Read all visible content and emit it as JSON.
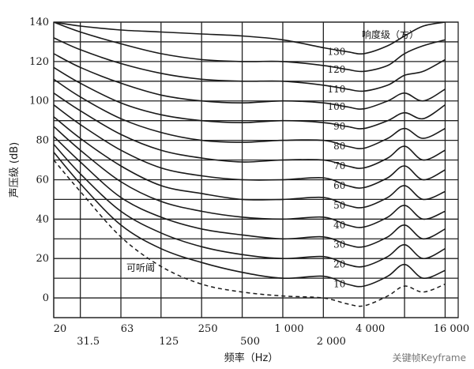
{
  "chart_data": {
    "type": "line",
    "title": "",
    "xlabel": "频率（Hz）",
    "ylabel": "声压级 (dB)",
    "x_scale": "log",
    "xlim": [
      20,
      20000
    ],
    "ylim": [
      -10,
      140
    ],
    "y_ticks": [
      0,
      20,
      40,
      60,
      80,
      100,
      120,
      140
    ],
    "x_ticks_upper": [
      {
        "value": 20,
        "label": "20"
      },
      {
        "value": 63,
        "label": "63"
      },
      {
        "value": 250,
        "label": "250"
      },
      {
        "value": 1000,
        "label": "1 000"
      },
      {
        "value": 4000,
        "label": "4 000"
      },
      {
        "value": 16000,
        "label": "16 000"
      }
    ],
    "x_ticks_lower": [
      {
        "value": 31.5,
        "label": "31.5"
      },
      {
        "value": 125,
        "label": "125"
      },
      {
        "value": 500,
        "label": "500"
      },
      {
        "value": 2000,
        "label": "2 000"
      }
    ],
    "legend_title": "响度级（方）",
    "threshold_label": "可听阈",
    "grid": true,
    "series": [
      {
        "name": "130",
        "x": [
          20,
          31.5,
          63,
          125,
          250,
          500,
          1000,
          2000,
          3000,
          4000,
          6000,
          8000,
          11000,
          16000
        ],
        "y": [
          140,
          138,
          136,
          135,
          134,
          133,
          131,
          127,
          125,
          124,
          128,
          133,
          138,
          140
        ]
      },
      {
        "name": "120",
        "x": [
          20,
          31.5,
          63,
          125,
          250,
          500,
          1000,
          2000,
          3000,
          4000,
          6000,
          8000,
          11000,
          16000
        ],
        "y": [
          140,
          135,
          129,
          124,
          121,
          120,
          120,
          118,
          116,
          115,
          118,
          124,
          128,
          131
        ]
      },
      {
        "name": "110",
        "x": [
          20,
          31.5,
          63,
          125,
          250,
          500,
          1000,
          2000,
          3000,
          4000,
          6000,
          8000,
          11000,
          16000
        ],
        "y": [
          132,
          126,
          119,
          114,
          111,
          110,
          110,
          108,
          106,
          105,
          108,
          113,
          115,
          121
        ]
      },
      {
        "name": "100",
        "x": [
          20,
          31.5,
          63,
          125,
          250,
          500,
          1000,
          2000,
          3000,
          4000,
          6000,
          8000,
          11000,
          16000
        ],
        "y": [
          124,
          117,
          109,
          103,
          100,
          99,
          100,
          99,
          97,
          96,
          100,
          104,
          100,
          106
        ]
      },
      {
        "name": "90",
        "x": [
          20,
          31.5,
          63,
          125,
          250,
          500,
          1000,
          2000,
          3000,
          4000,
          6000,
          8000,
          11000,
          16000
        ],
        "y": [
          117,
          109,
          99,
          93,
          90,
          89,
          90,
          89,
          87,
          86,
          90,
          94,
          91,
          98
        ]
      },
      {
        "name": "80",
        "x": [
          20,
          31.5,
          63,
          125,
          250,
          500,
          1000,
          2000,
          3000,
          4000,
          6000,
          8000,
          11000,
          16000
        ],
        "y": [
          111,
          102,
          91,
          84,
          80,
          79,
          80,
          80,
          77,
          76,
          81,
          86,
          81,
          86
        ]
      },
      {
        "name": "70",
        "x": [
          20,
          31.5,
          63,
          125,
          250,
          500,
          1000,
          2000,
          3000,
          4000,
          6000,
          8000,
          11000,
          16000
        ],
        "y": [
          104,
          95,
          83,
          75,
          71,
          69,
          70,
          70,
          67,
          66,
          71,
          77,
          70,
          75
        ]
      },
      {
        "name": "60",
        "x": [
          20,
          31.5,
          63,
          125,
          250,
          500,
          1000,
          2000,
          3000,
          4000,
          6000,
          8000,
          11000,
          16000
        ],
        "y": [
          98,
          88,
          75,
          66,
          62,
          60,
          60,
          61,
          57,
          56,
          61,
          67,
          60,
          65
        ]
      },
      {
        "name": "50",
        "x": [
          20,
          31.5,
          63,
          125,
          250,
          500,
          1000,
          2000,
          3000,
          4000,
          6000,
          8000,
          11000,
          16000
        ],
        "y": [
          92,
          81,
          67,
          57,
          53,
          50,
          50,
          51,
          47,
          46,
          51,
          57,
          50,
          54
        ]
      },
      {
        "name": "40",
        "x": [
          20,
          31.5,
          63,
          125,
          250,
          500,
          1000,
          2000,
          3000,
          4000,
          6000,
          8000,
          11000,
          16000
        ],
        "y": [
          87,
          75,
          59,
          49,
          44,
          41,
          40,
          41,
          37,
          36,
          41,
          47,
          40,
          44
        ]
      },
      {
        "name": "30",
        "x": [
          20,
          31.5,
          63,
          125,
          250,
          500,
          1000,
          2000,
          3000,
          4000,
          6000,
          8000,
          11000,
          16000
        ],
        "y": [
          82,
          69,
          51,
          41,
          35,
          32,
          30,
          31,
          27,
          26,
          31,
          37,
          30,
          35
        ]
      },
      {
        "name": "20",
        "x": [
          20,
          31.5,
          63,
          125,
          250,
          500,
          1000,
          2000,
          3000,
          4000,
          6000,
          8000,
          11000,
          16000
        ],
        "y": [
          78,
          63,
          44,
          33,
          26,
          22,
          20,
          21,
          17,
          16,
          21,
          27,
          20,
          25
        ]
      },
      {
        "name": "10",
        "x": [
          20,
          31.5,
          63,
          125,
          250,
          500,
          1000,
          2000,
          3000,
          4000,
          6000,
          8000,
          11000,
          16000
        ],
        "y": [
          74,
          58,
          37,
          25,
          18,
          13,
          10,
          11,
          7,
          6,
          11,
          17,
          10,
          14
        ]
      }
    ],
    "threshold": {
      "x": [
        20,
        31.5,
        63,
        125,
        250,
        500,
        1000,
        2000,
        3000,
        4000,
        6000,
        8000,
        11000,
        16000
      ],
      "y": [
        70,
        54,
        31,
        16,
        7,
        3,
        1,
        0,
        -3,
        -4,
        1,
        6,
        3,
        7
      ]
    }
  },
  "watermark": "关键帧Keyframe"
}
